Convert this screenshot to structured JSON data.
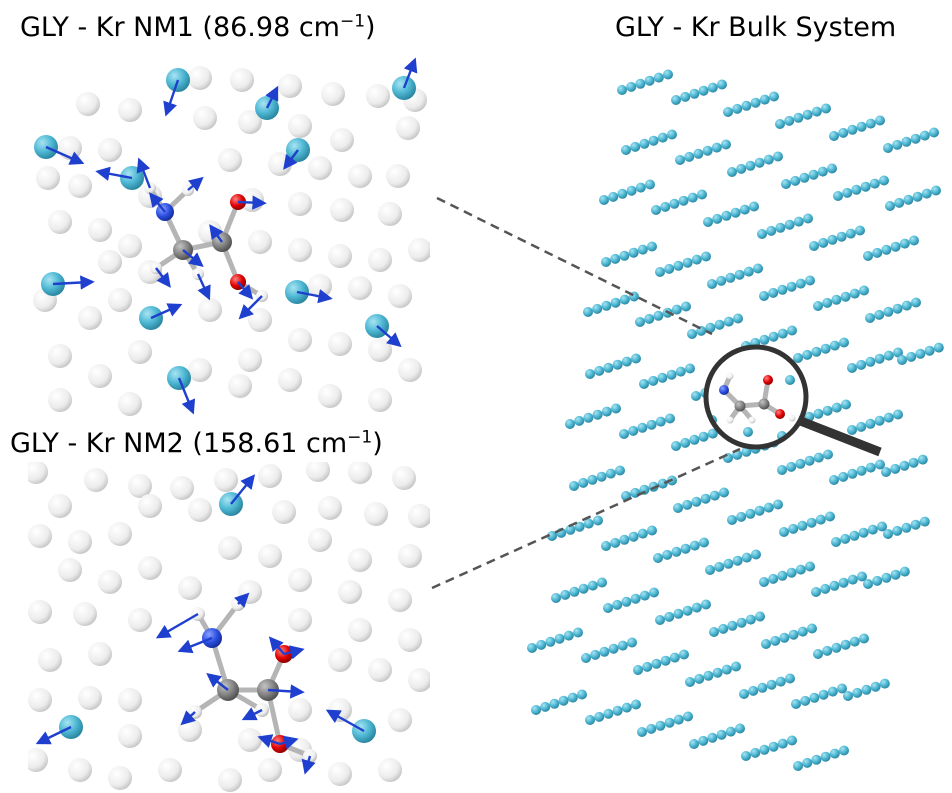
{
  "panels": {
    "nm1": {
      "title_prefix": "GLY - Kr NM1 (86.98 cm",
      "title_sup": "−1",
      "title_suffix": ")"
    },
    "nm2": {
      "title_prefix": "GLY - Kr NM2 (158.61 cm",
      "title_sup": "−1",
      "title_suffix": ")"
    },
    "bulk": {
      "title": "GLY - Kr Bulk System"
    }
  },
  "colors": {
    "krypton": "#4fb8d4",
    "matrix_atom": "#e8e8e8",
    "carbon": "#808080",
    "nitrogen": "#2a4de0",
    "oxygen": "#e00000",
    "hydrogen": "#f2f2f2",
    "displacement_arrow": "#1f3fcf",
    "magnifier": "#333333",
    "guide_line": "#555555"
  },
  "legend_icons": [
    "krypton-atom-icon",
    "matrix-atom-icon",
    "carbon-atom-icon",
    "nitrogen-atom-icon",
    "oxygen-atom-icon",
    "hydrogen-atom-icon",
    "displacement-arrow-icon",
    "magnifier-icon"
  ]
}
